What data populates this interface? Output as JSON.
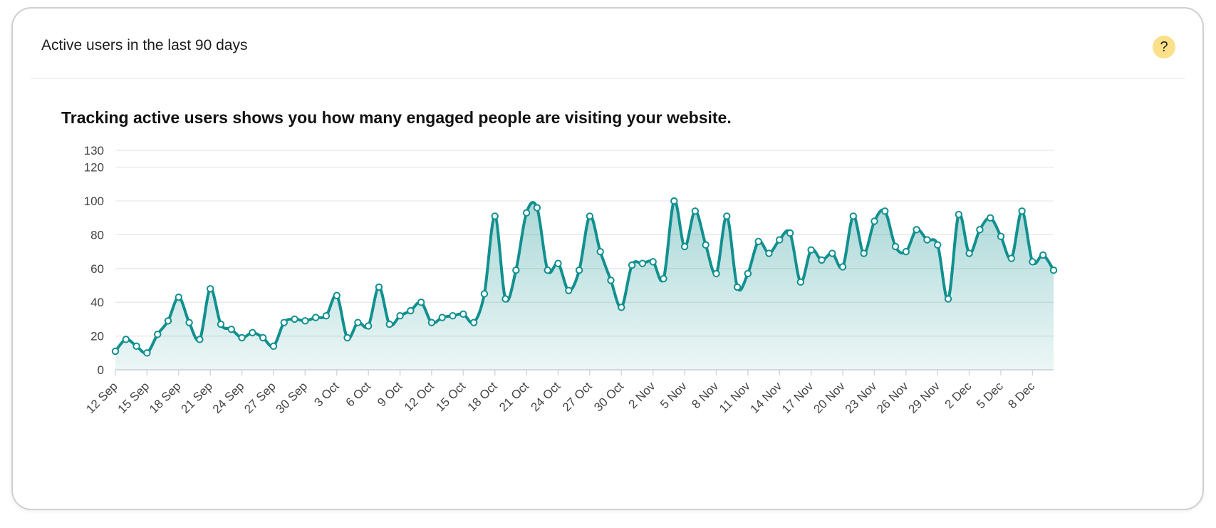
{
  "card": {
    "title": "Active users in the last 90 days",
    "help_label": "?",
    "subtitle": "Tracking active users shows you how many engaged people are visiting your website."
  },
  "colors": {
    "line": "#11908f",
    "fill": "#11908f",
    "help_bg": "#fbe08a"
  },
  "chart_data": {
    "type": "area",
    "title": "Active users in the last 90 days",
    "xlabel": "",
    "ylabel": "",
    "ylim": [
      0,
      130
    ],
    "yticks": [
      0,
      20,
      40,
      60,
      80,
      100,
      120,
      130
    ],
    "x_tick_labels": [
      "12 Sep",
      "15 Sep",
      "18 Sep",
      "21 Sep",
      "24 Sep",
      "27 Sep",
      "30 Sep",
      "3 Oct",
      "6 Oct",
      "9 Oct",
      "12 Oct",
      "15 Oct",
      "18 Oct",
      "21 Oct",
      "24 Oct",
      "27 Oct",
      "30 Oct",
      "2 Nov",
      "5 Nov",
      "8 Nov",
      "11 Nov",
      "14 Nov",
      "17 Nov",
      "20 Nov",
      "23 Nov",
      "26 Nov",
      "29 Nov",
      "2 Dec",
      "5 Dec",
      "8 Dec"
    ],
    "x_tick_every": 3,
    "series": [
      {
        "name": "Active users",
        "values": [
          11,
          18,
          14,
          10,
          21,
          29,
          43,
          28,
          18,
          48,
          27,
          24,
          19,
          22,
          19,
          14,
          28,
          30,
          29,
          31,
          32,
          44,
          19,
          28,
          26,
          49,
          27,
          32,
          35,
          40,
          28,
          31,
          32,
          33,
          28,
          45,
          91,
          42,
          59,
          93,
          96,
          59,
          63,
          47,
          59,
          91,
          70,
          53,
          37,
          62,
          63,
          64,
          54,
          100,
          73,
          94,
          74,
          57,
          91,
          49,
          57,
          76,
          69,
          77,
          81,
          52,
          71,
          65,
          69,
          61,
          91,
          69,
          88,
          94,
          73,
          70,
          83,
          77,
          74,
          42,
          92,
          69,
          83,
          90,
          79,
          66,
          94,
          64,
          68,
          59
        ]
      }
    ]
  }
}
